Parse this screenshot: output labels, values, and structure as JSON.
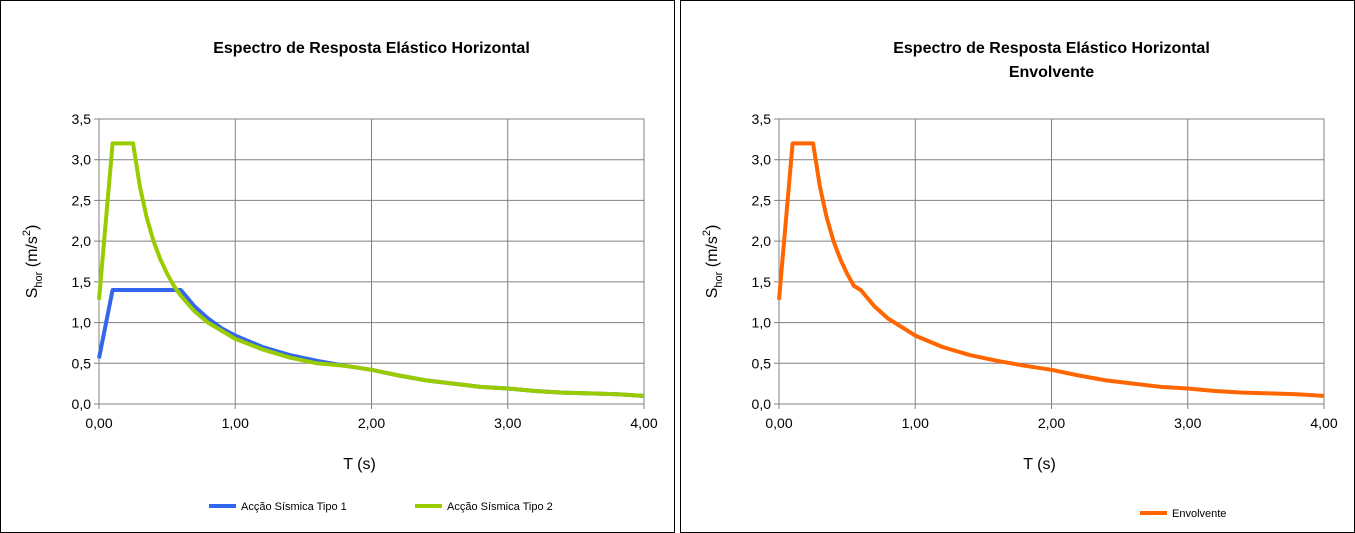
{
  "chart_data": [
    {
      "type": "line",
      "title": "Espectro de Resposta Elástico Horizontal",
      "subtitle": "",
      "xlabel": "T (s)",
      "ylabel": {
        "main": "S",
        "sub": "hor",
        "unit_open": " (m/s",
        "unit_sup": "2",
        "unit_close": ")"
      },
      "xlim": [
        0,
        4
      ],
      "ylim": [
        0,
        3.5
      ],
      "xticks": [
        0,
        1,
        2,
        3,
        4
      ],
      "xtick_labels": [
        "0,00",
        "1,00",
        "2,00",
        "3,00",
        "4,00"
      ],
      "yticks": [
        0,
        0.5,
        1,
        1.5,
        2,
        2.5,
        3,
        3.5
      ],
      "ytick_labels": [
        "0,0",
        "0,5",
        "1,0",
        "1,5",
        "2,0",
        "2,5",
        "3,0",
        "3,5"
      ],
      "grid": true,
      "legend_position": "bottom",
      "series": [
        {
          "name": "Acção Sísmica Tipo 1",
          "color": "#3366ee",
          "x": [
            0,
            0.1,
            0.6,
            0.7,
            0.8,
            0.9,
            1.0,
            1.2,
            1.4,
            1.6,
            1.8,
            2.0,
            2.2,
            2.4,
            2.6,
            2.8,
            3.0,
            3.2,
            3.4,
            3.6,
            3.8,
            4.0
          ],
          "y": [
            0.56,
            1.4,
            1.4,
            1.2,
            1.05,
            0.93,
            0.84,
            0.7,
            0.6,
            0.53,
            0.47,
            0.42,
            0.35,
            0.29,
            0.25,
            0.21,
            0.19,
            0.16,
            0.14,
            0.13,
            0.12,
            0.1
          ]
        },
        {
          "name": "Acção Sísmica Tipo 2",
          "color": "#99cc00",
          "x": [
            0,
            0.1,
            0.25,
            0.3,
            0.35,
            0.4,
            0.45,
            0.5,
            0.55,
            0.6,
            0.7,
            0.8,
            1.0,
            1.2,
            1.4,
            1.6,
            1.8,
            2.0,
            2.2,
            2.4,
            2.6,
            2.8,
            3.0,
            3.2,
            3.4,
            3.6,
            3.8,
            4.0
          ],
          "y": [
            1.28,
            3.2,
            3.2,
            2.67,
            2.29,
            2.0,
            1.78,
            1.6,
            1.45,
            1.33,
            1.14,
            1.0,
            0.8,
            0.67,
            0.57,
            0.5,
            0.47,
            0.42,
            0.35,
            0.29,
            0.25,
            0.21,
            0.19,
            0.16,
            0.14,
            0.13,
            0.12,
            0.1
          ]
        }
      ]
    },
    {
      "type": "line",
      "title": "Espectro de Resposta Elástico Horizontal",
      "subtitle": "Envolvente",
      "xlabel": "T (s)",
      "ylabel": {
        "main": "S",
        "sub": "hor",
        "unit_open": " (m/s",
        "unit_sup": "2",
        "unit_close": ")"
      },
      "xlim": [
        0,
        4
      ],
      "ylim": [
        0,
        3.5
      ],
      "xticks": [
        0,
        1,
        2,
        3,
        4
      ],
      "xtick_labels": [
        "0,00",
        "1,00",
        "2,00",
        "3,00",
        "4,00"
      ],
      "yticks": [
        0,
        0.5,
        1,
        1.5,
        2,
        2.5,
        3,
        3.5
      ],
      "ytick_labels": [
        "0,0",
        "0,5",
        "1,0",
        "1,5",
        "2,0",
        "2,5",
        "3,0",
        "3,5"
      ],
      "grid": true,
      "legend_position": "bottom-right",
      "series": [
        {
          "name": "Envolvente",
          "color": "#ff6600",
          "x": [
            0,
            0.1,
            0.25,
            0.3,
            0.35,
            0.4,
            0.45,
            0.5,
            0.55,
            0.6,
            0.7,
            0.8,
            1.0,
            1.2,
            1.4,
            1.6,
            1.8,
            2.0,
            2.2,
            2.4,
            2.6,
            2.8,
            3.0,
            3.2,
            3.4,
            3.6,
            3.8,
            4.0
          ],
          "y": [
            1.28,
            3.2,
            3.2,
            2.67,
            2.29,
            2.0,
            1.78,
            1.6,
            1.45,
            1.4,
            1.2,
            1.05,
            0.84,
            0.7,
            0.6,
            0.53,
            0.47,
            0.42,
            0.35,
            0.29,
            0.25,
            0.21,
            0.19,
            0.16,
            0.14,
            0.13,
            0.12,
            0.1
          ]
        }
      ]
    }
  ]
}
